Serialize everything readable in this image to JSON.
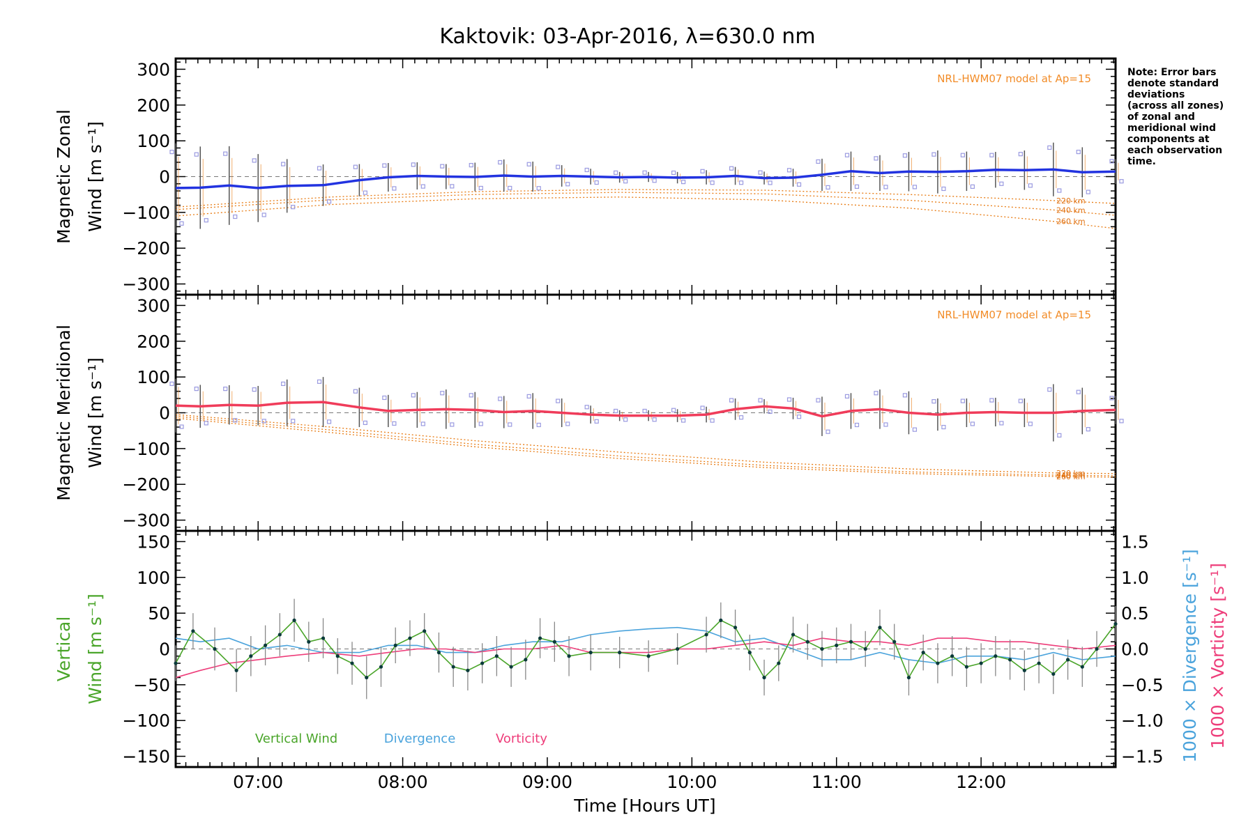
{
  "title": "Kaktovik: 03-Apr-2016, λ=630.0 nm",
  "note_lines": [
    "Note: Error bars",
    "denote standard",
    "deviations",
    "(across all zones)",
    "of zonal and",
    "meridional wind",
    "components at",
    "each observation",
    "time."
  ],
  "xaxis": {
    "title": "Time [Hours UT]",
    "ticks": [
      "07:00",
      "08:00",
      "09:00",
      "10:00",
      "11:00",
      "12:00"
    ],
    "range": [
      6.43,
      12.93
    ]
  },
  "colors": {
    "zonal": "#2233e0",
    "meridional": "#f03c5a",
    "model": "#e87a10",
    "samples": "#9a9ae0",
    "vertical": "#4aa52a",
    "divergence": "#4aa3dc",
    "vorticity": "#ee3d7a",
    "error": "#555555"
  },
  "chart_data": [
    {
      "type": "line",
      "panel": "zonal",
      "ylabel_line1": "Magnetic Zonal",
      "ylabel_line2": "Wind [m s⁻¹]",
      "ylim": [
        -330,
        330
      ],
      "yticks": [
        "300",
        "200",
        "100",
        "0",
        "−100",
        "−200",
        "−300"
      ],
      "model_label": "NRL-HWM07 model at Ap=15",
      "model_altitudes": [
        "220 km",
        "240 km",
        "260 km"
      ],
      "model_x": [
        6.43,
        7.5,
        8.5,
        9.5,
        10.5,
        11.5,
        12.5,
        12.93
      ],
      "model_series": [
        {
          "altitude": "220 km",
          "values": [
            -85,
            -57,
            -42,
            -36,
            -38,
            -50,
            -67,
            -75
          ]
        },
        {
          "altitude": "240 km",
          "values": [
            -92,
            -65,
            -50,
            -44,
            -48,
            -66,
            -93,
            -108
          ]
        },
        {
          "altitude": "260 km",
          "values": [
            -110,
            -78,
            -62,
            -57,
            -65,
            -88,
            -125,
            -145
          ]
        }
      ],
      "x": [
        6.43,
        6.6,
        6.8,
        7.0,
        7.2,
        7.45,
        7.7,
        7.9,
        8.1,
        8.3,
        8.5,
        8.7,
        8.9,
        9.1,
        9.3,
        9.5,
        9.7,
        9.9,
        10.1,
        10.3,
        10.5,
        10.7,
        10.9,
        11.1,
        11.3,
        11.5,
        11.7,
        11.9,
        12.1,
        12.3,
        12.5,
        12.7,
        12.93
      ],
      "values": [
        -32,
        -31,
        -25,
        -32,
        -26,
        -24,
        -10,
        -2,
        2,
        0,
        -1,
        3,
        0,
        2,
        0,
        -2,
        -1,
        -3,
        -2,
        2,
        -4,
        -3,
        5,
        15,
        10,
        14,
        13,
        15,
        19,
        18,
        20,
        12,
        14
      ],
      "errors": [
        125,
        115,
        110,
        95,
        75,
        58,
        45,
        40,
        38,
        35,
        40,
        45,
        42,
        30,
        22,
        15,
        14,
        16,
        20,
        25,
        18,
        25,
        45,
        55,
        50,
        55,
        60,
        55,
        50,
        55,
        75,
        70,
        35
      ]
    },
    {
      "type": "line",
      "panel": "meridional",
      "ylabel_line1": "Magnetic Meridional",
      "ylabel_line2": "Wind [m s⁻¹]",
      "ylim": [
        -330,
        330
      ],
      "yticks": [
        "300",
        "200",
        "100",
        "0",
        "−100",
        "−200",
        "−300"
      ],
      "model_label": "NRL-HWM07 model at Ap=15",
      "model_altitudes": [
        "220 km",
        "240 km",
        "260 km"
      ],
      "model_x": [
        6.43,
        7.5,
        8.5,
        9.5,
        10.5,
        11.5,
        12.5,
        12.93
      ],
      "model_series": [
        {
          "altitude": "220 km",
          "values": [
            -5,
            -40,
            -78,
            -110,
            -138,
            -157,
            -168,
            -170
          ]
        },
        {
          "altitude": "240 km",
          "values": [
            -10,
            -48,
            -88,
            -121,
            -147,
            -165,
            -174,
            -176
          ]
        },
        {
          "altitude": "260 km",
          "values": [
            -15,
            -55,
            -95,
            -128,
            -153,
            -170,
            -178,
            -180
          ]
        }
      ],
      "x": [
        6.43,
        6.6,
        6.8,
        7.0,
        7.2,
        7.45,
        7.7,
        7.9,
        8.1,
        8.3,
        8.5,
        8.7,
        8.9,
        9.1,
        9.3,
        9.5,
        9.7,
        9.9,
        10.1,
        10.3,
        10.5,
        10.7,
        10.9,
        11.1,
        11.3,
        11.5,
        11.7,
        11.9,
        12.1,
        12.3,
        12.5,
        12.7,
        12.93
      ],
      "values": [
        20,
        18,
        22,
        20,
        28,
        30,
        15,
        5,
        8,
        10,
        8,
        2,
        5,
        0,
        -5,
        -8,
        -8,
        -8,
        -5,
        10,
        18,
        12,
        -10,
        5,
        10,
        0,
        -5,
        0,
        2,
        0,
        0,
        5,
        8
      ],
      "errors": [
        75,
        60,
        55,
        55,
        65,
        70,
        55,
        45,
        50,
        55,
        50,
        45,
        50,
        40,
        25,
        15,
        15,
        18,
        22,
        30,
        20,
        30,
        55,
        50,
        55,
        60,
        45,
        40,
        40,
        40,
        80,
        65,
        40
      ]
    },
    {
      "type": "line",
      "panel": "vertical",
      "ylabel_line1": "Vertical",
      "ylabel_line2": "Wind [m s⁻¹]",
      "ylim": [
        -165,
        165
      ],
      "yticks": [
        "150",
        "100",
        "50",
        "0",
        "−50",
        "−100",
        "−150"
      ],
      "right_ylim": [
        -1.65,
        1.65
      ],
      "right_yticks": [
        "1.5",
        "1.0",
        "0.5",
        "0.0",
        "−0.5",
        "−1.0",
        "−1.5"
      ],
      "right_label_divergence": "1000 × Divergence [s⁻¹]",
      "right_label_vorticity": "1000 × Vorticity [s⁻¹]",
      "legend": [
        "Vertical Wind",
        "Divergence",
        "Vorticity"
      ],
      "vertical_x": [
        6.43,
        6.55,
        6.7,
        6.85,
        6.95,
        7.05,
        7.15,
        7.25,
        7.35,
        7.45,
        7.55,
        7.65,
        7.75,
        7.85,
        7.95,
        8.05,
        8.15,
        8.25,
        8.35,
        8.45,
        8.55,
        8.65,
        8.75,
        8.85,
        8.95,
        9.05,
        9.15,
        9.3,
        9.5,
        9.7,
        9.9,
        10.1,
        10.2,
        10.3,
        10.4,
        10.5,
        10.6,
        10.7,
        10.8,
        10.9,
        11.0,
        11.1,
        11.2,
        11.3,
        11.4,
        11.5,
        11.6,
        11.7,
        11.8,
        11.9,
        12.0,
        12.1,
        12.2,
        12.3,
        12.4,
        12.5,
        12.6,
        12.7,
        12.8,
        12.93
      ],
      "vertical_values": [
        -20,
        25,
        0,
        -30,
        -10,
        5,
        20,
        40,
        10,
        15,
        -10,
        -20,
        -40,
        -25,
        5,
        15,
        25,
        -5,
        -25,
        -30,
        -20,
        -10,
        -25,
        -15,
        15,
        10,
        -10,
        -5,
        -5,
        -10,
        0,
        20,
        40,
        30,
        -5,
        -40,
        -20,
        20,
        10,
        0,
        5,
        10,
        0,
        30,
        10,
        -40,
        -5,
        -20,
        -10,
        -25,
        -20,
        -10,
        -15,
        -30,
        -20,
        -35,
        -15,
        -25,
        0,
        35
      ],
      "vertical_errors": [
        25,
        25,
        30,
        30,
        28,
        28,
        30,
        30,
        28,
        28,
        25,
        30,
        30,
        28,
        25,
        25,
        25,
        28,
        28,
        28,
        28,
        28,
        28,
        28,
        28,
        28,
        28,
        25,
        22,
        22,
        22,
        25,
        25,
        25,
        25,
        25,
        25,
        25,
        25,
        25,
        25,
        25,
        25,
        25,
        25,
        25,
        25,
        28,
        28,
        28,
        28,
        28,
        28,
        28,
        28,
        28,
        28,
        28,
        25,
        25
      ],
      "divergence_x": [
        6.43,
        6.6,
        6.8,
        7.0,
        7.2,
        7.45,
        7.7,
        7.9,
        8.1,
        8.3,
        8.5,
        8.7,
        8.9,
        9.1,
        9.3,
        9.5,
        9.7,
        9.9,
        10.1,
        10.3,
        10.5,
        10.7,
        10.9,
        11.1,
        11.3,
        11.5,
        11.7,
        11.9,
        12.1,
        12.3,
        12.5,
        12.7,
        12.93
      ],
      "divergence_values": [
        0.15,
        0.1,
        0.15,
        0.0,
        0.05,
        -0.05,
        -0.05,
        0.05,
        0.05,
        -0.05,
        -0.05,
        0.05,
        0.1,
        0.1,
        0.2,
        0.25,
        0.28,
        0.3,
        0.25,
        0.1,
        0.15,
        0.0,
        -0.15,
        -0.15,
        -0.05,
        -0.15,
        -0.2,
        -0.1,
        -0.1,
        -0.15,
        -0.05,
        -0.15,
        -0.1
      ],
      "vorticity_x": [
        6.43,
        6.6,
        6.8,
        7.0,
        7.2,
        7.45,
        7.7,
        7.9,
        8.1,
        8.3,
        8.5,
        8.7,
        8.9,
        9.1,
        9.3,
        9.5,
        9.7,
        9.9,
        10.1,
        10.3,
        10.5,
        10.7,
        10.9,
        11.1,
        11.3,
        11.5,
        11.7,
        11.9,
        12.1,
        12.3,
        12.5,
        12.7,
        12.93
      ],
      "vorticity_values": [
        -0.4,
        -0.3,
        -0.2,
        -0.15,
        -0.1,
        -0.05,
        -0.1,
        -0.05,
        0.0,
        0.0,
        -0.05,
        0.0,
        0.0,
        0.05,
        -0.05,
        -0.05,
        -0.05,
        0.0,
        0.0,
        0.05,
        0.1,
        0.05,
        0.15,
        0.1,
        0.1,
        0.05,
        0.15,
        0.15,
        0.1,
        0.1,
        0.05,
        0.0,
        0.05
      ]
    }
  ]
}
